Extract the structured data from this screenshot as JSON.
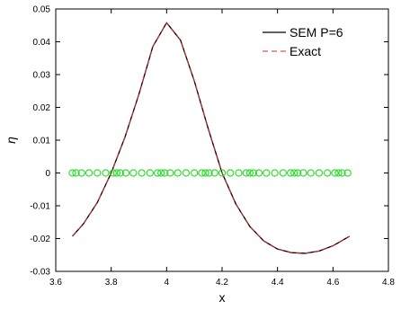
{
  "chart_data": {
    "type": "line",
    "xlabel": "x",
    "ylabel": "η",
    "xlim": [
      3.6,
      4.8
    ],
    "ylim": [
      -0.03,
      0.05
    ],
    "xticks": [
      3.6,
      3.8,
      4.0,
      4.2,
      4.4,
      4.6,
      4.8
    ],
    "xtick_labels": [
      "3.6",
      "3.8",
      "4",
      "4.2",
      "4.4",
      "4.6",
      "4.8"
    ],
    "yticks": [
      -0.03,
      -0.02,
      -0.01,
      0,
      0.01,
      0.02,
      0.03,
      0.04,
      0.05
    ],
    "ytick_labels": [
      "-0.03",
      "-0.02",
      "-0.01",
      "0",
      "0.01",
      "0.02",
      "0.03",
      "0.04",
      "0.05"
    ],
    "grid": false,
    "legend_position": "top-right",
    "series": [
      {
        "name": "SEM P=6",
        "style": "solid",
        "color": "#000000",
        "x": [
          3.66,
          3.7,
          3.75,
          3.8,
          3.85,
          3.9,
          3.95,
          4.0,
          4.05,
          4.1,
          4.15,
          4.2,
          4.25,
          4.3,
          4.35,
          4.4,
          4.45,
          4.5,
          4.55,
          4.6,
          4.66
        ],
        "y": [
          -0.0193,
          -0.0155,
          -0.009,
          0.0,
          0.011,
          0.024,
          0.0385,
          0.0458,
          0.0405,
          0.028,
          0.0135,
          0.0,
          -0.0095,
          -0.0163,
          -0.0207,
          -0.0232,
          -0.0243,
          -0.0245,
          -0.0238,
          -0.0222,
          -0.0193
        ]
      },
      {
        "name": "Exact",
        "style": "dashed",
        "color": "#d62728",
        "x": [
          3.66,
          3.7,
          3.75,
          3.8,
          3.85,
          3.9,
          3.95,
          4.0,
          4.05,
          4.1,
          4.15,
          4.2,
          4.25,
          4.3,
          4.35,
          4.4,
          4.45,
          4.5,
          4.55,
          4.6,
          4.66
        ],
        "y": [
          -0.0193,
          -0.0155,
          -0.009,
          0.0,
          0.011,
          0.024,
          0.0385,
          0.0458,
          0.0405,
          0.028,
          0.0135,
          0.0,
          -0.0095,
          -0.0163,
          -0.0207,
          -0.0232,
          -0.0243,
          -0.0245,
          -0.0238,
          -0.0222,
          -0.0193
        ]
      },
      {
        "type": "scatter",
        "marker": "circle-open",
        "color": "#22dd22",
        "x": [
          3.66,
          3.673,
          3.693,
          3.72,
          3.75,
          3.78,
          3.807,
          3.82,
          3.833,
          3.853,
          3.88,
          3.91,
          3.94,
          3.967,
          3.98,
          3.993,
          4.013,
          4.04,
          4.07,
          4.1,
          4.127,
          4.14,
          4.153,
          4.173,
          4.2,
          4.23,
          4.26,
          4.287,
          4.3,
          4.313,
          4.333,
          4.36,
          4.39,
          4.42,
          4.447,
          4.46,
          4.473,
          4.493,
          4.52,
          4.55,
          4.58,
          4.607,
          4.62,
          4.633,
          4.653
        ],
        "y": [
          0,
          0,
          0,
          0,
          0,
          0,
          0,
          0,
          0,
          0,
          0,
          0,
          0,
          0,
          0,
          0,
          0,
          0,
          0,
          0,
          0,
          0,
          0,
          0,
          0,
          0,
          0,
          0,
          0,
          0,
          0,
          0,
          0,
          0,
          0,
          0,
          0,
          0,
          0,
          0,
          0,
          0,
          0,
          0,
          0
        ]
      }
    ]
  }
}
